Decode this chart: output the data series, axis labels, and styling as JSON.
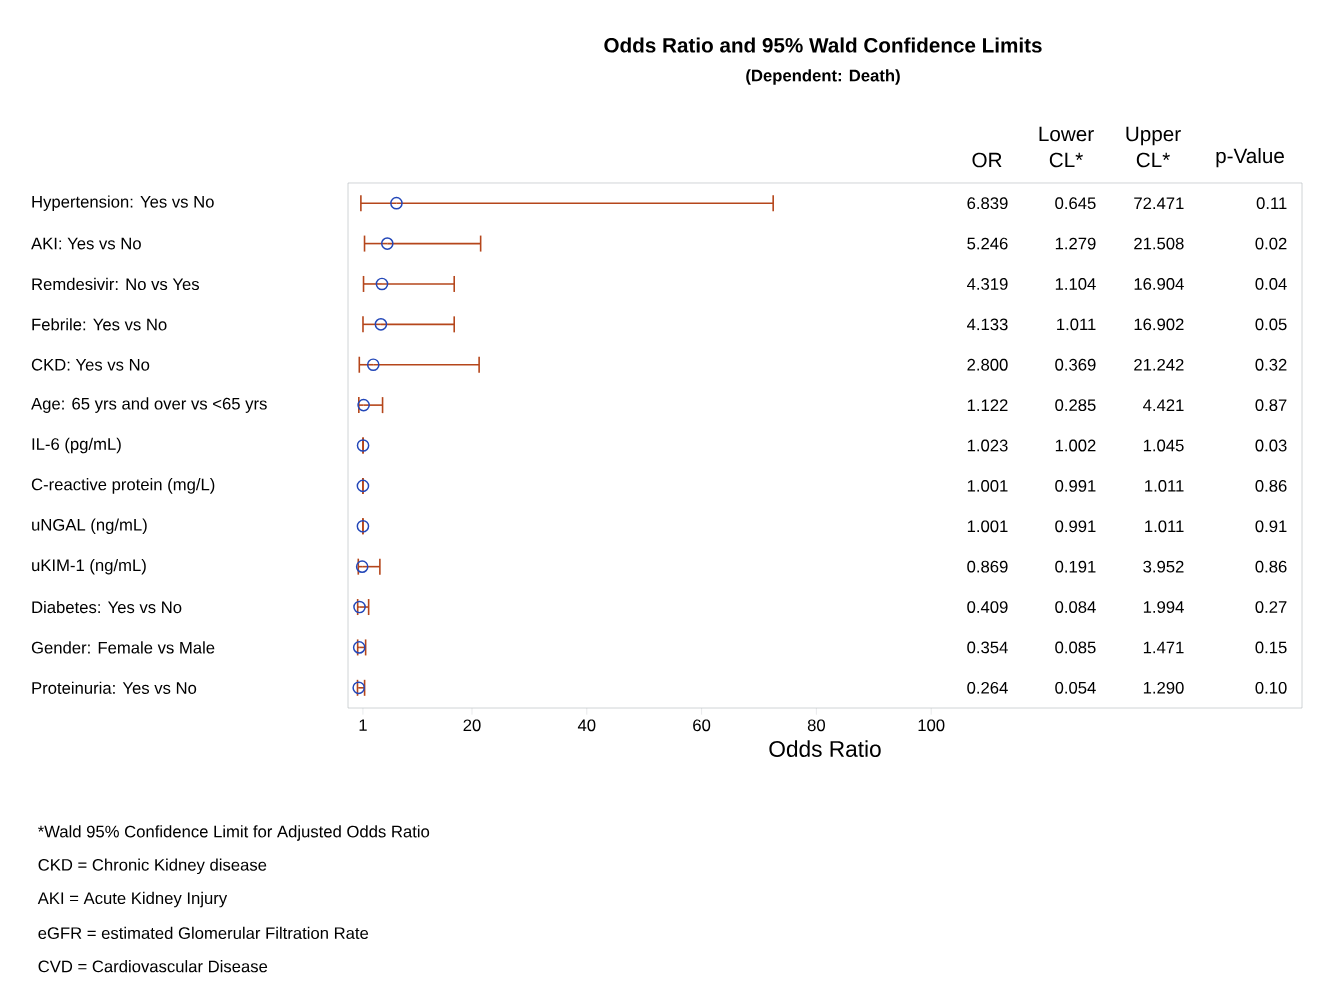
{
  "chart_data": {
    "type": "scatter",
    "orientation": "horizontal",
    "title": "Odds Ratio and 95% Wald Confidence Limits",
    "subtitle": "(Dependent: Death)",
    "xlabel": "Odds Ratio",
    "categories": [
      "Hypertension: Yes vs No",
      "AKI: Yes vs No",
      "Remdesivir: No vs Yes",
      "Febrile: Yes vs No",
      "CKD: Yes vs No",
      "Age: 65 yrs and over vs <65 yrs",
      "IL-6 (pg/mL)",
      "C-reactive protein (mg/L)",
      "uNGAL (ng/mL)",
      "uKIM-1 (ng/mL)",
      "Diabetes: Yes vs No",
      "Gender: Female vs Male",
      "Proteinuria: Yes vs No"
    ],
    "values": [
      6.839,
      5.246,
      4.319,
      4.133,
      2.8,
      1.122,
      1.023,
      1.001,
      1.001,
      0.869,
      0.409,
      0.354,
      0.264
    ],
    "errors": [
      [
        0.645,
        72.471
      ],
      [
        1.279,
        21.508
      ],
      [
        1.104,
        16.904
      ],
      [
        1.011,
        16.902
      ],
      [
        0.369,
        21.242
      ],
      [
        0.285,
        4.421
      ],
      [
        1.002,
        1.045
      ],
      [
        0.991,
        1.011
      ],
      [
        0.991,
        1.011
      ],
      [
        0.191,
        3.952
      ],
      [
        0.084,
        1.994
      ],
      [
        0.085,
        1.471
      ],
      [
        0.054,
        1.29
      ]
    ],
    "color": "#2347b8",
    "marker": "circle",
    "xlim": [
      -1.6,
      164.6
    ],
    "xticks": [
      1,
      20,
      40,
      60,
      80,
      100
    ],
    "annotations": [
      "OR",
      "Lower CL*",
      "Upper CL*",
      "p-Value",
      "6.839",
      "0.645",
      "72.471",
      "0.11",
      "5.246",
      "1.279",
      "21.508",
      "0.02",
      "4.319",
      "1.104",
      "16.904",
      "0.04",
      "4.133",
      "1.011",
      "16.902",
      "0.05",
      "2.800",
      "0.369",
      "21.242",
      "0.32",
      "1.122",
      "0.285",
      "4.421",
      "0.87",
      "1.023",
      "1.002",
      "1.045",
      "0.03",
      "1.001",
      "0.991",
      "1.011",
      "0.86",
      "1.001",
      "0.991",
      "1.011",
      "0.91",
      "0.869",
      "0.191",
      "3.952",
      "0.86",
      "0.409",
      "0.084",
      "1.994",
      "0.27",
      "0.354",
      "0.085",
      "1.471",
      "0.15",
      "0.264",
      "0.054",
      "1.290",
      "0.10",
      "*Wald  95% Confidence Limit for Adjusted Odds Ratio",
      "CKD = Chronic Kidney disease",
      "AKI = Acute Kidney Injury",
      "eGFR = estimated Glomerular Filtration Rate",
      "CVD = Cardiovascular Disease"
    ]
  }
}
